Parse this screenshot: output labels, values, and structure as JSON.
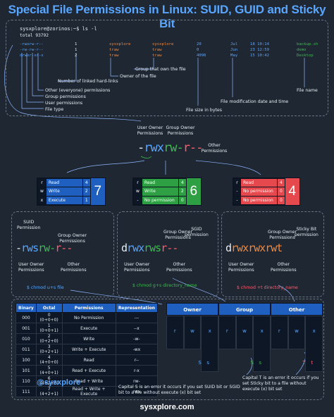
{
  "title": "Special File Permissions in Linux: SUID, GUID and Sticky Bit",
  "terminal": {
    "prompt": "sysxplore@zorinos",
    "command": ":~$ ls -l",
    "total": "total 93792",
    "rows": [
      {
        "perm": "-rwxrw-r--",
        "links": "1",
        "owner": "sysxplore",
        "group": "sysxplore",
        "size": "20",
        "month": "Jul",
        "day_time": "18 10:14",
        "name": "backup.sh"
      },
      {
        "perm": "-rw-rw-r--",
        "links": "1",
        "owner": "traw",
        "group": "traw",
        "size": "0",
        "month": "Jun",
        "day_time": "23 12:59",
        "name": "demo"
      },
      {
        "perm": "drwxr-xr-x",
        "links": "2",
        "owner": "traw",
        "group": "traw",
        "size": "4096",
        "month": "May",
        "day_time": "15 10:42",
        "name": "Desktop"
      }
    ],
    "annotations": {
      "hard_links": "Number of linked hard-links",
      "owner_file": "Owner of the file",
      "group_own": "Group that own the file",
      "other_perms": "Other (everyone) permissions",
      "group_perms": "Group permissions",
      "user_perms": "User permissions",
      "file_type": "File type",
      "file_name": "File name",
      "mod_date": "File modification date and time",
      "file_size": "File size in bytes"
    }
  },
  "breakdown": {
    "user_owner": "User Owner\nPermissions",
    "group_owner": "Group Owner\nPermissions",
    "other": "Other\nPermissions",
    "dash": "-",
    "user_bits": "rwx",
    "group_bits": "rw-",
    "other_bits": "r--"
  },
  "perm_boxes": [
    {
      "color": "#1f5fbf",
      "rows": [
        [
          "r",
          "Read",
          "4"
        ],
        [
          "w",
          "Write",
          "2"
        ],
        [
          "x",
          "Execute",
          "1"
        ]
      ],
      "total": "7"
    },
    {
      "color": "#2ea043",
      "rows": [
        [
          "r",
          "Read",
          "4"
        ],
        [
          "w",
          "Write",
          "2"
        ],
        [
          "-",
          "No permission",
          "0"
        ]
      ],
      "total": "6"
    },
    {
      "color": "#e5484d",
      "rows": [
        [
          "r",
          "Read",
          "4"
        ],
        [
          "-",
          "No permission",
          "0"
        ],
        [
          "-",
          "No permission",
          "0"
        ]
      ],
      "total": "4"
    }
  ],
  "special": [
    {
      "top_label": "SUID\nPermission",
      "group_label": "Group Owner\nPermissions",
      "user_label": "User Owner\nPermissions",
      "other_label": "Other\nPermissions",
      "prefix": "-",
      "p1": "rws",
      "p2": "rw-",
      "p3": "r--",
      "command": "$ chmod u+s file"
    },
    {
      "top_label": "SGID\npermission",
      "group_label": "Group Owner\nPermissions",
      "user_label": "User Owner\nPermissions",
      "other_label": "Other\nPermissions",
      "prefix": "d",
      "p1": "rwx",
      "p2": "rws",
      "p3": "r--",
      "command": "$ chmod g+s directory_name"
    },
    {
      "top_label": "Sticky Bit\npermission",
      "group_label": "Group Owner\nPermissions",
      "user_label": "User Owner\nPermissions",
      "other_label": "Other\nPermissions",
      "prefix": "d",
      "p1": "rwx",
      "p2": "rwx",
      "p3": "rwt",
      "command": "$ chmod +t directory_name"
    }
  ],
  "binary_table": {
    "headers": [
      "Binary",
      "Octal",
      "Permissions",
      "Representation"
    ],
    "rows": [
      [
        "000",
        "0 (0+0+0)",
        "No Permission",
        "---"
      ],
      [
        "001",
        "1 (0+0+1)",
        "Execute",
        "--x"
      ],
      [
        "010",
        "2 (0+2+0)",
        "Write",
        "-w-"
      ],
      [
        "011",
        "3 (0+2+1)",
        "Write + Execute",
        "-wx"
      ],
      [
        "100",
        "4 (4+0+0)",
        "Read",
        "r--"
      ],
      [
        "101",
        "5 (4+0+1)",
        "Read + Execute",
        "r-x"
      ],
      [
        "110",
        "6 (4+2+0)",
        "Read + Write",
        "rw-"
      ],
      [
        "111",
        "7 (4+2+1)",
        "Read + Write + Execute",
        "rwx"
      ]
    ]
  },
  "ogo": {
    "headers": [
      "Owner",
      "Group",
      "Other"
    ],
    "letters": [
      "r",
      "w",
      "x",
      "r",
      "w",
      "x",
      "r",
      "w",
      "x"
    ],
    "special_letters": [
      "S",
      "s",
      "S",
      "s",
      "T",
      "t"
    ]
  },
  "handle": "@sysxplore",
  "notes": {
    "capital_s": "Capital S is an error it occurs if you set SUID bit or SGID bit to a file without execute (x) bit set",
    "capital_t": "Capital T is an error it occurs if you set Sticky bit to a file without execute (x) bit set"
  },
  "footer": "sysxplore.com",
  "colors": {
    "background": "#1f2733",
    "blue": "#58a6ff",
    "green": "#3fb950",
    "red": "#ff5c6c",
    "orange": "#f0883e"
  }
}
